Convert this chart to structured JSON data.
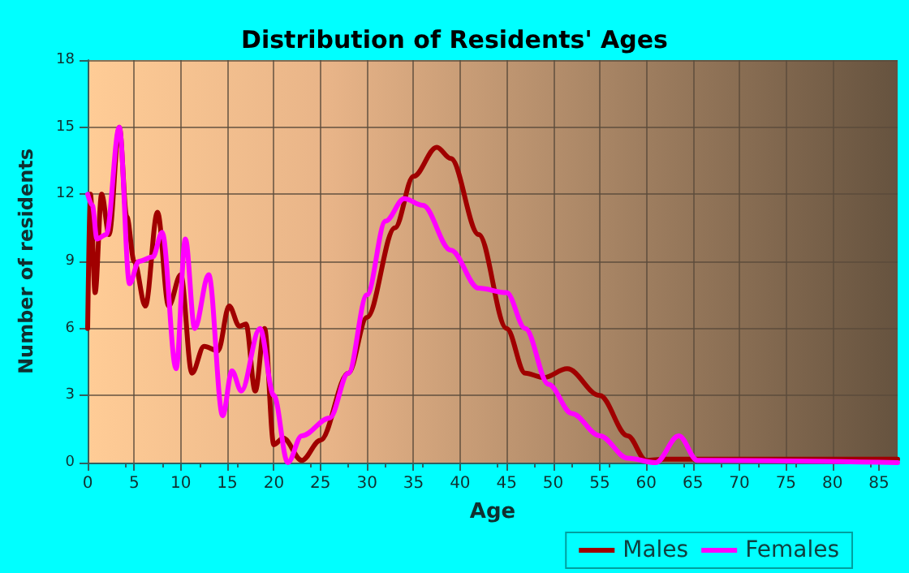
{
  "chart_data": {
    "type": "line",
    "title": "Distribution of Residents' Ages",
    "xlabel": "Age",
    "ylabel": "Number of residents",
    "xlim": [
      0,
      87
    ],
    "xticks": [
      0,
      5,
      10,
      15,
      20,
      25,
      30,
      35,
      40,
      45,
      50,
      55,
      60,
      65,
      70,
      75,
      80,
      85
    ],
    "ylim": [
      0,
      18
    ],
    "yticks": [
      0,
      3,
      6,
      9,
      12,
      15,
      18
    ],
    "grid": true,
    "legend": "bottom right",
    "marker": "none",
    "line_style": "solid",
    "series": [
      {
        "name": "Males",
        "color": "#a00000",
        "x": [
          0,
          0.3,
          0.8,
          1.5,
          2.3,
          3.4,
          4.2,
          5,
          6.2,
          7.5,
          8.7,
          10,
          11.2,
          12.5,
          14,
          15.2,
          16.3,
          17,
          18,
          19,
          20,
          21,
          23,
          25,
          28,
          30,
          33,
          35,
          37.5,
          39,
          42,
          45,
          47,
          49,
          51.5,
          55,
          58,
          60,
          62,
          87
        ],
        "values": [
          6,
          12,
          7.6,
          12,
          10.2,
          15,
          11,
          9,
          7,
          11.2,
          7,
          8.4,
          4,
          5.2,
          5,
          7,
          6.1,
          6.2,
          3.2,
          6,
          0.8,
          1.1,
          0.1,
          1,
          4,
          6.5,
          10.5,
          12.8,
          14.1,
          13.6,
          10.2,
          6,
          4,
          3.8,
          4.2,
          3,
          1.2,
          0.1,
          0.15,
          0.15
        ]
      },
      {
        "name": "Females",
        "color": "#ff00ff",
        "x": [
          0,
          0.5,
          1,
          2,
          3.4,
          4.5,
          5.5,
          7,
          8,
          9.5,
          10.5,
          11.5,
          13,
          14.5,
          15.5,
          16.5,
          18.5,
          20,
          21.5,
          23,
          26,
          28,
          30,
          32,
          34,
          36,
          39,
          42,
          45,
          47,
          49.5,
          52,
          55,
          58,
          61,
          63.5,
          65.5,
          87
        ],
        "values": [
          12,
          11.5,
          10,
          10.2,
          15,
          8,
          9,
          9.2,
          10.3,
          4.2,
          10,
          6,
          8.4,
          2.1,
          4.1,
          3.2,
          6,
          3,
          0,
          1.2,
          2,
          4,
          7.5,
          10.8,
          11.8,
          11.5,
          9.5,
          7.8,
          7.6,
          6,
          3.5,
          2.2,
          1.2,
          0.2,
          0,
          1.2,
          0.1,
          0
        ]
      }
    ]
  }
}
